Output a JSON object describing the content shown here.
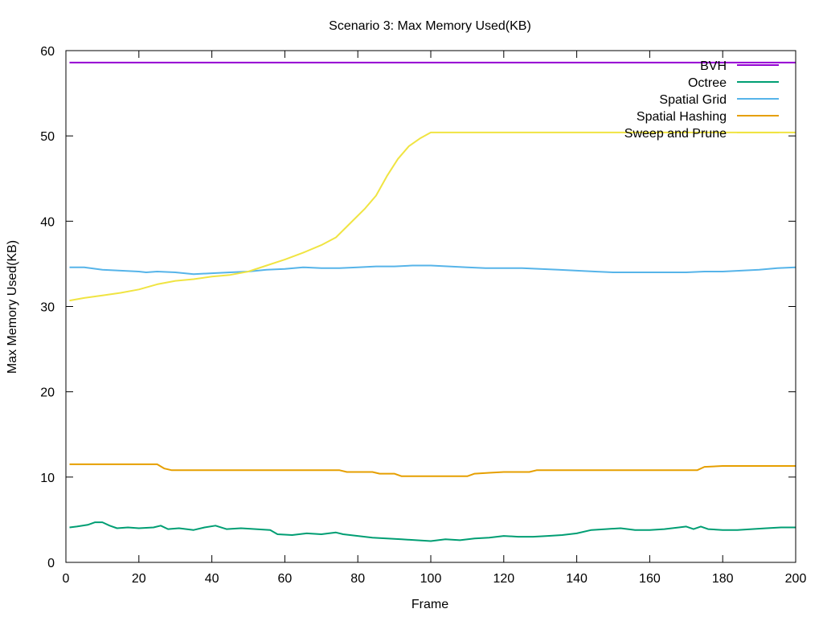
{
  "chart_data": {
    "type": "line",
    "title": "Scenario 3: Max Memory Used(KB)",
    "xlabel": "Frame",
    "ylabel": "Max Memory Used(KB)",
    "xlim": [
      0,
      200
    ],
    "ylim": [
      0,
      60
    ],
    "xticks": [
      0,
      20,
      40,
      60,
      80,
      100,
      120,
      140,
      160,
      180,
      200
    ],
    "yticks": [
      0,
      10,
      20,
      30,
      40,
      50,
      60
    ],
    "grid": false,
    "legend_position": "top-right",
    "series": [
      {
        "name": "BVH",
        "color": "#9400d3",
        "points": [
          [
            1,
            58.6
          ],
          [
            200,
            58.6
          ]
        ]
      },
      {
        "name": "Octree",
        "color": "#009e73",
        "points": [
          [
            1,
            4.1
          ],
          [
            3,
            4.2
          ],
          [
            6,
            4.4
          ],
          [
            8,
            4.7
          ],
          [
            10,
            4.7
          ],
          [
            12,
            4.3
          ],
          [
            14,
            4.0
          ],
          [
            17,
            4.1
          ],
          [
            20,
            4.0
          ],
          [
            24,
            4.1
          ],
          [
            26,
            4.3
          ],
          [
            28,
            3.9
          ],
          [
            31,
            4.0
          ],
          [
            35,
            3.8
          ],
          [
            38,
            4.1
          ],
          [
            41,
            4.3
          ],
          [
            44,
            3.9
          ],
          [
            48,
            4.0
          ],
          [
            52,
            3.9
          ],
          [
            56,
            3.8
          ],
          [
            58,
            3.3
          ],
          [
            62,
            3.2
          ],
          [
            66,
            3.4
          ],
          [
            70,
            3.3
          ],
          [
            74,
            3.5
          ],
          [
            76,
            3.3
          ],
          [
            80,
            3.1
          ],
          [
            84,
            2.9
          ],
          [
            88,
            2.8
          ],
          [
            92,
            2.7
          ],
          [
            96,
            2.6
          ],
          [
            100,
            2.5
          ],
          [
            104,
            2.7
          ],
          [
            108,
            2.6
          ],
          [
            112,
            2.8
          ],
          [
            116,
            2.9
          ],
          [
            120,
            3.1
          ],
          [
            124,
            3.0
          ],
          [
            128,
            3.0
          ],
          [
            132,
            3.1
          ],
          [
            136,
            3.2
          ],
          [
            140,
            3.4
          ],
          [
            144,
            3.8
          ],
          [
            148,
            3.9
          ],
          [
            152,
            4.0
          ],
          [
            156,
            3.8
          ],
          [
            160,
            3.8
          ],
          [
            164,
            3.9
          ],
          [
            168,
            4.1
          ],
          [
            170,
            4.2
          ],
          [
            172,
            3.9
          ],
          [
            174,
            4.2
          ],
          [
            176,
            3.9
          ],
          [
            180,
            3.8
          ],
          [
            184,
            3.8
          ],
          [
            188,
            3.9
          ],
          [
            192,
            4.0
          ],
          [
            196,
            4.1
          ],
          [
            200,
            4.1
          ]
        ]
      },
      {
        "name": "Spatial Grid",
        "color": "#56b4e9",
        "points": [
          [
            1,
            34.6
          ],
          [
            5,
            34.6
          ],
          [
            10,
            34.3
          ],
          [
            15,
            34.2
          ],
          [
            20,
            34.1
          ],
          [
            22,
            34.0
          ],
          [
            25,
            34.1
          ],
          [
            30,
            34.0
          ],
          [
            35,
            33.8
          ],
          [
            40,
            33.9
          ],
          [
            45,
            34.0
          ],
          [
            50,
            34.1
          ],
          [
            55,
            34.3
          ],
          [
            60,
            34.4
          ],
          [
            65,
            34.6
          ],
          [
            70,
            34.5
          ],
          [
            75,
            34.5
          ],
          [
            80,
            34.6
          ],
          [
            85,
            34.7
          ],
          [
            90,
            34.7
          ],
          [
            95,
            34.8
          ],
          [
            100,
            34.8
          ],
          [
            105,
            34.7
          ],
          [
            110,
            34.6
          ],
          [
            115,
            34.5
          ],
          [
            120,
            34.5
          ],
          [
            125,
            34.5
          ],
          [
            130,
            34.4
          ],
          [
            135,
            34.3
          ],
          [
            140,
            34.2
          ],
          [
            145,
            34.1
          ],
          [
            150,
            34.0
          ],
          [
            155,
            34.0
          ],
          [
            160,
            34.0
          ],
          [
            165,
            34.0
          ],
          [
            170,
            34.0
          ],
          [
            175,
            34.1
          ],
          [
            180,
            34.1
          ],
          [
            185,
            34.2
          ],
          [
            190,
            34.3
          ],
          [
            195,
            34.5
          ],
          [
            200,
            34.6
          ]
        ]
      },
      {
        "name": "Spatial Hashing",
        "color": "#e69f00",
        "points": [
          [
            1,
            11.5
          ],
          [
            25,
            11.5
          ],
          [
            27,
            11.0
          ],
          [
            29,
            10.8
          ],
          [
            75,
            10.8
          ],
          [
            77,
            10.6
          ],
          [
            84,
            10.6
          ],
          [
            86,
            10.4
          ],
          [
            90,
            10.4
          ],
          [
            92,
            10.1
          ],
          [
            110,
            10.1
          ],
          [
            112,
            10.4
          ],
          [
            116,
            10.5
          ],
          [
            120,
            10.6
          ],
          [
            127,
            10.6
          ],
          [
            129,
            10.8
          ],
          [
            173,
            10.8
          ],
          [
            175,
            11.2
          ],
          [
            180,
            11.3
          ],
          [
            200,
            11.3
          ]
        ]
      },
      {
        "name": "Sweep and Prune",
        "color": "#f0e442",
        "points": [
          [
            1,
            30.7
          ],
          [
            5,
            31.0
          ],
          [
            10,
            31.3
          ],
          [
            15,
            31.6
          ],
          [
            20,
            32.0
          ],
          [
            25,
            32.6
          ],
          [
            30,
            33.0
          ],
          [
            35,
            33.2
          ],
          [
            40,
            33.5
          ],
          [
            45,
            33.7
          ],
          [
            50,
            34.1
          ],
          [
            55,
            34.8
          ],
          [
            60,
            35.5
          ],
          [
            65,
            36.3
          ],
          [
            70,
            37.2
          ],
          [
            74,
            38.1
          ],
          [
            78,
            39.8
          ],
          [
            82,
            41.5
          ],
          [
            85,
            43.0
          ],
          [
            88,
            45.3
          ],
          [
            91,
            47.3
          ],
          [
            94,
            48.8
          ],
          [
            97,
            49.7
          ],
          [
            100,
            50.4
          ],
          [
            200,
            50.4
          ]
        ]
      }
    ]
  }
}
